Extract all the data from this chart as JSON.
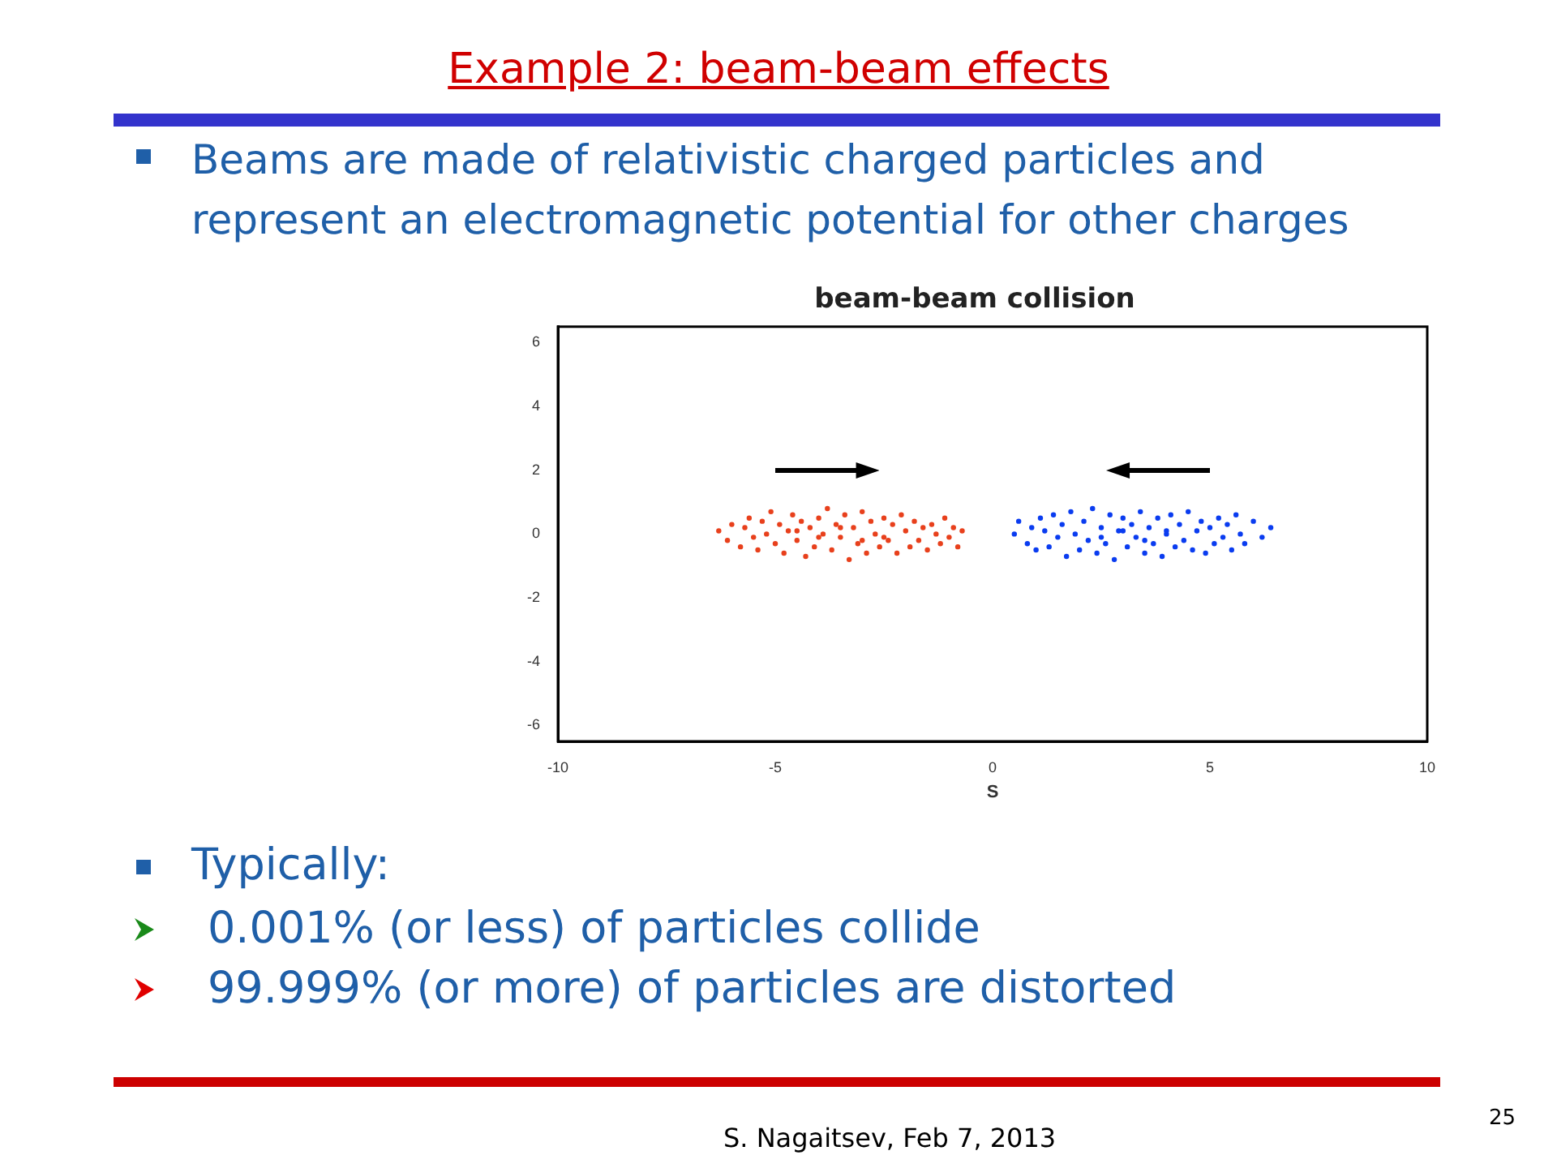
{
  "chart_data": {
    "type": "scatter",
    "title": "beam-beam collision",
    "xlabel": "S",
    "annotations": [
      "Example 2: beam-beam effects",
      "Beams are made of relativistic charged particles and represent an electromagnetic potential for other charges",
      "Typically:",
      "0.001% (or less) of particles collide",
      "99.999% (or more) of particles are distorted",
      "S.  Nagaitsev, Feb 7, 2013",
      "25"
    ],
    "xlim": [
      -10,
      10
    ],
    "xticks": [
      -10,
      -5,
      0,
      5,
      10
    ],
    "ylim": [
      -6.5,
      6.5
    ],
    "yticks": [
      -6,
      -4,
      -2,
      0,
      2,
      4,
      6
    ],
    "grid": false,
    "legend": false,
    "marker": "circle",
    "series": [
      {
        "color": "#e8401c",
        "x": [
          -6.3,
          -6.1,
          -6.0,
          -5.8,
          -5.7,
          -5.6,
          -5.5,
          -5.4,
          -5.3,
          -5.2,
          -5.1,
          -5.0,
          -4.9,
          -4.8,
          -4.7,
          -4.6,
          -4.5,
          -4.4,
          -4.3,
          -4.2,
          -4.1,
          -4.0,
          -3.9,
          -3.8,
          -3.7,
          -3.6,
          -3.5,
          -3.4,
          -3.3,
          -3.2,
          -3.1,
          -3.0,
          -2.9,
          -2.8,
          -2.7,
          -2.6,
          -2.5,
          -2.4,
          -2.3,
          -2.2,
          -2.1,
          -2.0,
          -1.9,
          -1.8,
          -1.7,
          -1.6,
          -1.5,
          -1.4,
          -1.3,
          -1.2,
          -1.1,
          -1.0,
          -0.9,
          -0.8,
          -0.7,
          -4.0,
          -3.5,
          -3.0,
          -4.5,
          -2.5
        ],
        "values": [
          0.1,
          -0.2,
          0.3,
          -0.4,
          0.2,
          0.5,
          -0.1,
          -0.5,
          0.4,
          0.0,
          0.7,
          -0.3,
          0.3,
          -0.6,
          0.1,
          0.6,
          -0.2,
          0.4,
          -0.7,
          0.2,
          -0.4,
          0.5,
          0.0,
          0.8,
          -0.5,
          0.3,
          -0.1,
          0.6,
          -0.8,
          0.2,
          -0.3,
          0.7,
          -0.6,
          0.4,
          0.0,
          -0.4,
          0.5,
          -0.2,
          0.3,
          -0.6,
          0.6,
          0.1,
          -0.4,
          0.4,
          -0.2,
          0.2,
          -0.5,
          0.3,
          0.0,
          -0.3,
          0.5,
          -0.1,
          0.2,
          -0.4,
          0.1,
          -0.1,
          0.2,
          -0.2,
          0.1,
          -0.1
        ]
      },
      {
        "color": "#0a3cf0",
        "x": [
          0.5,
          0.6,
          0.8,
          0.9,
          1.0,
          1.1,
          1.2,
          1.3,
          1.4,
          1.5,
          1.6,
          1.7,
          1.8,
          1.9,
          2.0,
          2.1,
          2.2,
          2.3,
          2.4,
          2.5,
          2.6,
          2.7,
          2.8,
          2.9,
          3.0,
          3.1,
          3.2,
          3.3,
          3.4,
          3.5,
          3.6,
          3.7,
          3.8,
          3.9,
          4.0,
          4.1,
          4.2,
          4.3,
          4.4,
          4.5,
          4.6,
          4.7,
          4.8,
          4.9,
          5.0,
          5.1,
          5.2,
          5.3,
          5.4,
          5.5,
          5.6,
          5.7,
          5.8,
          6.0,
          6.2,
          6.4,
          3.0,
          3.5,
          4.0,
          2.5
        ],
        "values": [
          0.0,
          0.4,
          -0.3,
          0.2,
          -0.5,
          0.5,
          0.1,
          -0.4,
          0.6,
          -0.1,
          0.3,
          -0.7,
          0.7,
          0.0,
          -0.5,
          0.4,
          -0.2,
          0.8,
          -0.6,
          0.2,
          -0.3,
          0.6,
          -0.8,
          0.1,
          0.5,
          -0.4,
          0.3,
          -0.1,
          0.7,
          -0.6,
          0.2,
          -0.3,
          0.5,
          -0.7,
          0.0,
          0.6,
          -0.4,
          0.3,
          -0.2,
          0.7,
          -0.5,
          0.1,
          0.4,
          -0.6,
          0.2,
          -0.3,
          0.5,
          -0.1,
          0.3,
          -0.5,
          0.6,
          0.0,
          -0.3,
          0.4,
          -0.1,
          0.2,
          0.1,
          -0.2,
          0.1,
          -0.1
        ]
      }
    ]
  }
}
